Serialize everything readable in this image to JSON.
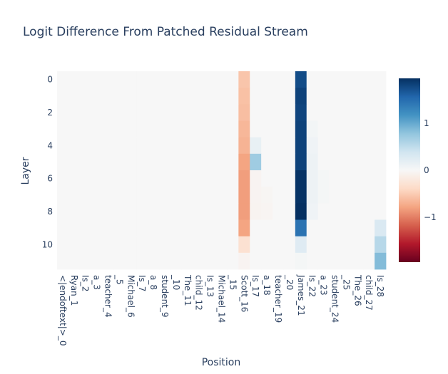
{
  "chart_data": {
    "type": "heatmap",
    "title": "Logit Difference From Patched Residual Stream",
    "xlabel": "Position",
    "ylabel": "Layer",
    "x_categories": [
      "<|endoftext|>_0",
      "Ryan_1",
      "Is_2",
      "a_3",
      "teacher_4",
      "_5",
      "Michael_6",
      "Is_7",
      "a_8",
      "student_9",
      "_10",
      "The_11",
      "child_12",
      "Is_13",
      "Michael_14",
      "_15",
      "Scott_16",
      "Is_17",
      "a_18",
      "teacher_19",
      "_20",
      "James_21",
      "Is_22",
      "a_23",
      "student_24",
      "_25",
      "The_26",
      "child_27",
      "Is_28"
    ],
    "y_categories": [
      0,
      1,
      2,
      3,
      4,
      5,
      6,
      7,
      8,
      9,
      10,
      11
    ],
    "y_ticks": [
      0,
      2,
      4,
      6,
      8,
      10
    ],
    "colorbar_ticks": [
      1,
      0,
      -1
    ],
    "zmin": -1.95,
    "zmax": 1.95,
    "colorscale": "RdBu",
    "default_value": 0,
    "cells": [
      {
        "layer": 0,
        "pos": 16,
        "value": -0.55
      },
      {
        "layer": 1,
        "pos": 16,
        "value": -0.58
      },
      {
        "layer": 2,
        "pos": 16,
        "value": -0.6
      },
      {
        "layer": 3,
        "pos": 16,
        "value": -0.65
      },
      {
        "layer": 4,
        "pos": 16,
        "value": -0.68
      },
      {
        "layer": 5,
        "pos": 16,
        "value": -0.78
      },
      {
        "layer": 6,
        "pos": 16,
        "value": -0.82
      },
      {
        "layer": 7,
        "pos": 16,
        "value": -0.82
      },
      {
        "layer": 8,
        "pos": 16,
        "value": -0.82
      },
      {
        "layer": 9,
        "pos": 16,
        "value": -0.78
      },
      {
        "layer": 10,
        "pos": 16,
        "value": -0.3
      },
      {
        "layer": 11,
        "pos": 16,
        "value": -0.05
      },
      {
        "layer": 4,
        "pos": 17,
        "value": 0.15
      },
      {
        "layer": 5,
        "pos": 17,
        "value": 0.7
      },
      {
        "layer": 6,
        "pos": 17,
        "value": -0.05
      },
      {
        "layer": 7,
        "pos": 17,
        "value": -0.05
      },
      {
        "layer": 8,
        "pos": 17,
        "value": -0.06
      },
      {
        "layer": 7,
        "pos": 18,
        "value": -0.03
      },
      {
        "layer": 8,
        "pos": 18,
        "value": -0.04
      },
      {
        "layer": 0,
        "pos": 21,
        "value": 1.75
      },
      {
        "layer": 1,
        "pos": 21,
        "value": 1.82
      },
      {
        "layer": 2,
        "pos": 21,
        "value": 1.8
      },
      {
        "layer": 3,
        "pos": 21,
        "value": 1.82
      },
      {
        "layer": 4,
        "pos": 21,
        "value": 1.82
      },
      {
        "layer": 5,
        "pos": 21,
        "value": 1.82
      },
      {
        "layer": 6,
        "pos": 21,
        "value": 1.93
      },
      {
        "layer": 7,
        "pos": 21,
        "value": 1.93
      },
      {
        "layer": 8,
        "pos": 21,
        "value": 1.95
      },
      {
        "layer": 9,
        "pos": 21,
        "value": 1.45
      },
      {
        "layer": 10,
        "pos": 21,
        "value": 0.25
      },
      {
        "layer": 11,
        "pos": 21,
        "value": 0.03
      },
      {
        "layer": 3,
        "pos": 22,
        "value": 0.05
      },
      {
        "layer": 4,
        "pos": 22,
        "value": 0.08
      },
      {
        "layer": 5,
        "pos": 22,
        "value": 0.1
      },
      {
        "layer": 6,
        "pos": 22,
        "value": 0.1
      },
      {
        "layer": 7,
        "pos": 22,
        "value": 0.1
      },
      {
        "layer": 8,
        "pos": 22,
        "value": 0.08
      },
      {
        "layer": 6,
        "pos": 23,
        "value": 0.03
      },
      {
        "layer": 7,
        "pos": 23,
        "value": 0.03
      },
      {
        "layer": 9,
        "pos": 28,
        "value": 0.3
      },
      {
        "layer": 10,
        "pos": 28,
        "value": 0.55
      },
      {
        "layer": 11,
        "pos": 28,
        "value": 0.85
      }
    ]
  }
}
